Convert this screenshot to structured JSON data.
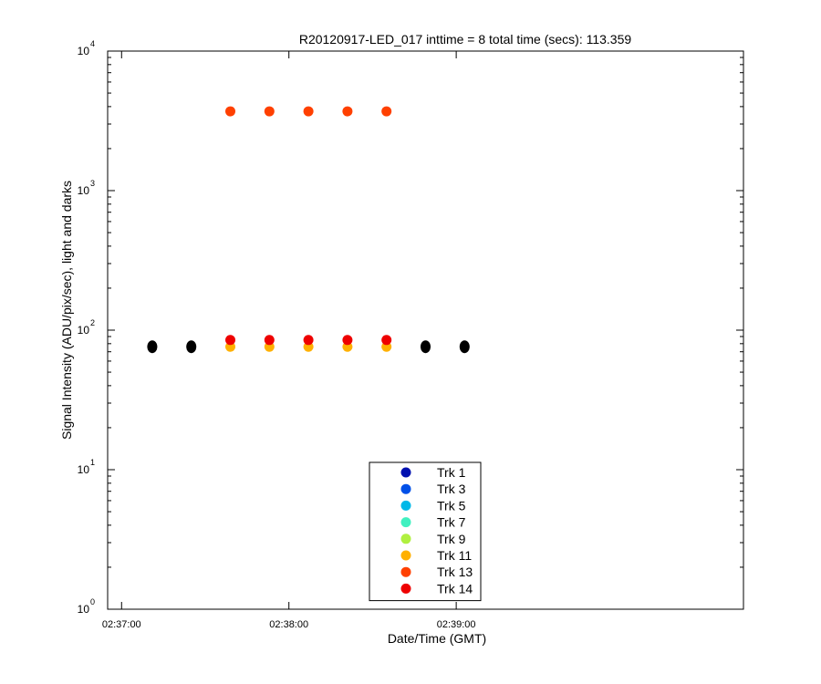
{
  "chart_data": {
    "type": "scatter",
    "title": "R20120917-LED_017 inttime = 8 total time (secs): 113.359",
    "xlabel": "Date/Time (GMT)",
    "ylabel": "Signal Intensity (ADU/pix/sec), light and darks",
    "yscale": "log",
    "ylim": [
      1,
      10000
    ],
    "y_ticks": [
      {
        "value": 1,
        "base": "10",
        "exp": "0"
      },
      {
        "value": 10,
        "base": "10",
        "exp": "1"
      },
      {
        "value": 100,
        "base": "10",
        "exp": "2"
      },
      {
        "value": 1000,
        "base": "10",
        "exp": "3"
      },
      {
        "value": 10000,
        "base": "10",
        "exp": "4"
      }
    ],
    "xlim_seconds": [
      -5,
      223
    ],
    "x_ticks": [
      {
        "seconds": 0,
        "label": "02:37:00"
      },
      {
        "seconds": 60,
        "label": "02:38:00"
      },
      {
        "seconds": 120,
        "label": "02:39:00"
      }
    ],
    "legend_position": "bottom-center",
    "series": [
      {
        "name": "Trk 1",
        "color": "#0010b0",
        "x": [],
        "y": []
      },
      {
        "name": "Trk 3",
        "color": "#0050e8",
        "x": [],
        "y": []
      },
      {
        "name": "Trk 5",
        "color": "#00b8e8",
        "x": [],
        "y": []
      },
      {
        "name": "Trk 7",
        "color": "#40f0c0",
        "x": [],
        "y": []
      },
      {
        "name": "Trk 9",
        "color": "#b0f040",
        "x": [],
        "y": []
      },
      {
        "name": "Trk 11",
        "color": "#ffb000",
        "x": [
          39,
          53,
          67,
          81,
          95
        ],
        "y": [
          76,
          76,
          76,
          76,
          76
        ]
      },
      {
        "name": "Trk 13",
        "color": "#ff4000",
        "x": [
          39,
          53,
          67,
          81,
          95
        ],
        "y": [
          3700,
          3700,
          3700,
          3700,
          3700
        ]
      },
      {
        "name": "Trk 14",
        "color": "#ee0000",
        "x": [
          39,
          53,
          67,
          81,
          95
        ],
        "y": [
          85,
          85,
          85,
          85,
          85
        ]
      }
    ],
    "dark_points": {
      "color": "#000000",
      "x": [
        11,
        25,
        109,
        123
      ],
      "y": [
        76,
        76,
        76,
        76
      ]
    }
  }
}
